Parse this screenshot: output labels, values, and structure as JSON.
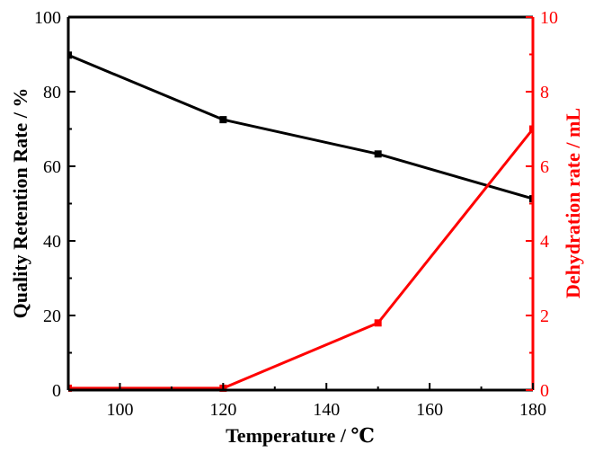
{
  "chart_data": {
    "type": "line",
    "xlabel": "Temperature / ℃",
    "ylabel_left": "Quality Retention Rate / %",
    "ylabel_right": "Dehydration rate / mL",
    "xlim": [
      90,
      180
    ],
    "ylim_left": [
      0,
      100
    ],
    "ylim_right": [
      0,
      10
    ],
    "x_ticks": [
      100,
      120,
      140,
      160,
      180
    ],
    "y_left_ticks": [
      0,
      20,
      40,
      60,
      80,
      100
    ],
    "y_right_ticks": [
      0,
      2,
      4,
      6,
      8,
      10
    ],
    "grid": false,
    "series": [
      {
        "axis": "left",
        "color": "#000000",
        "marker": "square",
        "x": [
          90,
          120,
          150,
          180
        ],
        "y": [
          89.8,
          72.5,
          63.3,
          51.3
        ]
      },
      {
        "axis": "right",
        "color": "#ff0000",
        "marker": "square",
        "x": [
          90,
          120,
          150,
          180
        ],
        "y": [
          0.05,
          0.05,
          1.8,
          7.0
        ]
      }
    ]
  }
}
